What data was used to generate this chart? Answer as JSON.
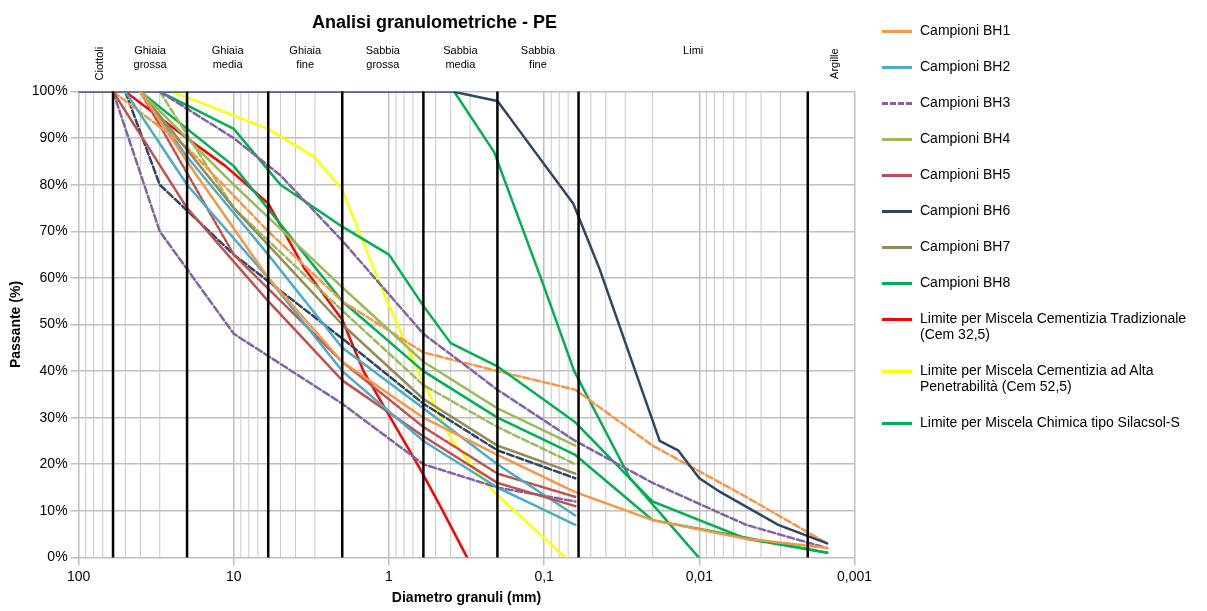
{
  "chart_data": {
    "type": "line",
    "title": "Analisi granulometriche - PE",
    "xlabel": "Diametro granuli (mm)",
    "ylabel": "Passante (%)",
    "log": "x",
    "xlim": [
      100,
      0.001
    ],
    "xticks": [
      100,
      10,
      1,
      {
        "value": 0.1,
        "label": "0,1"
      },
      {
        "value": 0.01,
        "label": "0,01"
      },
      {
        "value": 0.001,
        "label": "0,001"
      }
    ],
    "ylim": [
      0,
      100
    ],
    "yticks": [
      {
        "value": 0,
        "label": "0%"
      },
      {
        "value": 10,
        "label": "10%"
      },
      {
        "value": 20,
        "label": "20%"
      },
      {
        "value": 30,
        "label": "30%"
      },
      {
        "value": 40,
        "label": "40%"
      },
      {
        "value": 50,
        "label": "50%"
      },
      {
        "value": 60,
        "label": "60%"
      },
      {
        "value": 70,
        "label": "70%"
      },
      {
        "value": 80,
        "label": "80%"
      },
      {
        "value": 90,
        "label": "90%"
      },
      {
        "value": 100,
        "label": "100%"
      }
    ],
    "grid": true,
    "legend": "right",
    "marker": "none",
    "ref_lines": [
      {
        "axis": "x",
        "value": 60,
        "color": "#000000"
      },
      {
        "axis": "x",
        "value": 20,
        "color": "#000000"
      },
      {
        "axis": "x",
        "value": 6,
        "color": "#000000"
      },
      {
        "axis": "x",
        "value": 2,
        "color": "#000000"
      },
      {
        "axis": "x",
        "value": 0.6,
        "color": "#000000"
      },
      {
        "axis": "x",
        "value": 0.2,
        "color": "#000000"
      },
      {
        "axis": "x",
        "value": 0.06,
        "color": "#000000"
      },
      {
        "axis": "x",
        "value": 0.002,
        "color": "#000000"
      }
    ],
    "annotations": [
      "Ciottoli",
      "Ghiaia grossa",
      "Ghiaia media",
      "Ghiaia fine",
      "Sabbia grossa",
      "Sabbia media",
      "Sabbia fine",
      "Limi",
      "Argille"
    ],
    "series": [
      {
        "name": "Campioni BH1",
        "color": "#f79646",
        "line_style": "solid",
        "x": [
          40,
          20,
          6,
          2,
          0.6,
          0.2,
          0.063,
          0.02,
          0.005,
          0.0015
        ],
        "values": [
          100,
          85,
          60,
          42,
          30,
          22,
          14,
          8,
          4,
          2
        ]
      },
      {
        "name": "Campioni BH2",
        "color": "#4bacc6",
        "line_style": "solid",
        "x": [
          50,
          20,
          6,
          2,
          0.6,
          0.2,
          0.063
        ],
        "values": [
          100,
          80,
          60,
          40,
          25,
          15,
          7
        ]
      },
      {
        "name": "Campioni BH3",
        "color": "#8064a2",
        "line_style": "dashed",
        "x": [
          30,
          10,
          5,
          2,
          0.6,
          0.2,
          0.063,
          0.02,
          0.005,
          0.0015
        ],
        "values": [
          100,
          90,
          82,
          68,
          48,
          36,
          25,
          16,
          7,
          2
        ]
      },
      {
        "name": "Campioni BH4",
        "color": "#9bbb59",
        "line_style": "solid",
        "x": [
          40,
          10,
          2,
          0.6,
          0.2,
          0.063
        ],
        "values": [
          100,
          80,
          58,
          42,
          32,
          24
        ]
      },
      {
        "name": "Campioni BH5",
        "color": "#c0504d",
        "line_style": "solid",
        "x": [
          60,
          20,
          6,
          2,
          0.6,
          0.2,
          0.063
        ],
        "values": [
          100,
          75,
          55,
          38,
          26,
          16,
          11
        ]
      },
      {
        "name": "Campioni BH6",
        "color": "#2e4565",
        "line_style": "solid",
        "x": [
          100,
          0.39,
          0.2,
          0.065,
          0.044,
          0.018,
          0.0137,
          0.01,
          0.0073,
          0.0031,
          0.0015
        ],
        "values": [
          100,
          100,
          98,
          76,
          62,
          25,
          23,
          17,
          14,
          7,
          3
        ]
      },
      {
        "name": "Campioni BH7",
        "color": "#948a54",
        "line_style": "solid",
        "x": [
          40,
          10,
          2,
          0.6,
          0.2,
          0.063
        ],
        "values": [
          100,
          75,
          50,
          34,
          24,
          18
        ]
      },
      {
        "name": "Campioni BH8",
        "color": "#00b050",
        "line_style": "solid",
        "x": [
          30,
          10,
          5,
          2,
          1,
          0.6,
          0.4,
          0.2,
          0.063,
          0.02,
          0.005,
          0.0015
        ],
        "values": [
          100,
          92,
          80,
          71,
          65,
          54,
          46,
          41,
          29,
          12,
          4,
          1
        ]
      },
      {
        "color": "#f79646",
        "line_style": "dashed",
        "x": [
          60,
          20,
          6,
          2,
          0.6,
          0.2,
          0.063,
          0.02,
          0.005,
          0.0015
        ],
        "values": [
          100,
          88,
          70,
          55,
          44,
          40,
          36,
          24,
          13,
          3
        ]
      },
      {
        "color": "#4bacc6",
        "line_style": "solid",
        "x": [
          40,
          20,
          6,
          2,
          0.6,
          0.2,
          0.063
        ],
        "values": [
          100,
          86,
          65,
          45,
          32,
          20,
          9
        ]
      },
      {
        "color": "#8064a2",
        "line_style": "dashed",
        "x": [
          60,
          30,
          10,
          2,
          0.6,
          0.2,
          0.063
        ],
        "values": [
          100,
          70,
          48,
          33,
          20,
          15,
          12
        ]
      },
      {
        "color": "#9bbb59",
        "line_style": "dashed",
        "x": [
          30,
          10,
          2,
          0.6,
          0.2,
          0.063
        ],
        "values": [
          100,
          75,
          53,
          37,
          28,
          20
        ]
      },
      {
        "color": "#c0504d",
        "line_style": "dotted",
        "x": [
          40,
          10,
          2,
          0.6,
          0.2,
          0.063
        ],
        "values": [
          100,
          65,
          42,
          28,
          18,
          13
        ]
      },
      {
        "color": "#2e4565",
        "line_style": "dashed",
        "x": [
          50,
          30,
          10,
          2,
          0.6,
          0.2,
          0.063
        ],
        "values": [
          100,
          80,
          65,
          47,
          33,
          23,
          17
        ]
      },
      {
        "color": "#00b050",
        "line_style": "solid",
        "x": [
          40,
          10,
          2,
          0.6,
          0.2,
          0.063,
          0.02,
          0.0015
        ],
        "values": [
          100,
          84,
          55,
          40,
          30,
          22,
          8,
          1
        ]
      },
      {
        "name": "Limite per Miscela Cementizia Tradizionale (Cem 32,5)",
        "color": "#ff0000",
        "line_style": "solid",
        "x": [
          50,
          20,
          11.3,
          6,
          3.5,
          2,
          1.46,
          0.63,
          0.45,
          0.314
        ],
        "values": [
          100,
          90,
          84,
          76,
          62,
          51,
          40,
          19,
          10,
          0
        ]
      },
      {
        "name": "Limite per Miscela Cementizia ad Alta Penetrabilità (Cem 52,5)",
        "color": "#ffff00",
        "line_style": "solid",
        "x": [
          25,
          6,
          3.03,
          2,
          1.09,
          0.63,
          0.39,
          0.21,
          0.073
        ],
        "values": [
          100,
          92,
          86,
          79,
          57,
          39,
          25,
          14,
          0
        ]
      },
      {
        "name": "Limite per Miscela Chimica tipo Silacsol-S",
        "color": "#00b050",
        "line_style": "solid",
        "x": [
          0.38,
          0.21,
          0.105,
          0.064,
          0.028,
          0.0101
        ],
        "values": [
          100,
          87,
          60,
          40,
          17,
          0
        ]
      }
    ]
  }
}
